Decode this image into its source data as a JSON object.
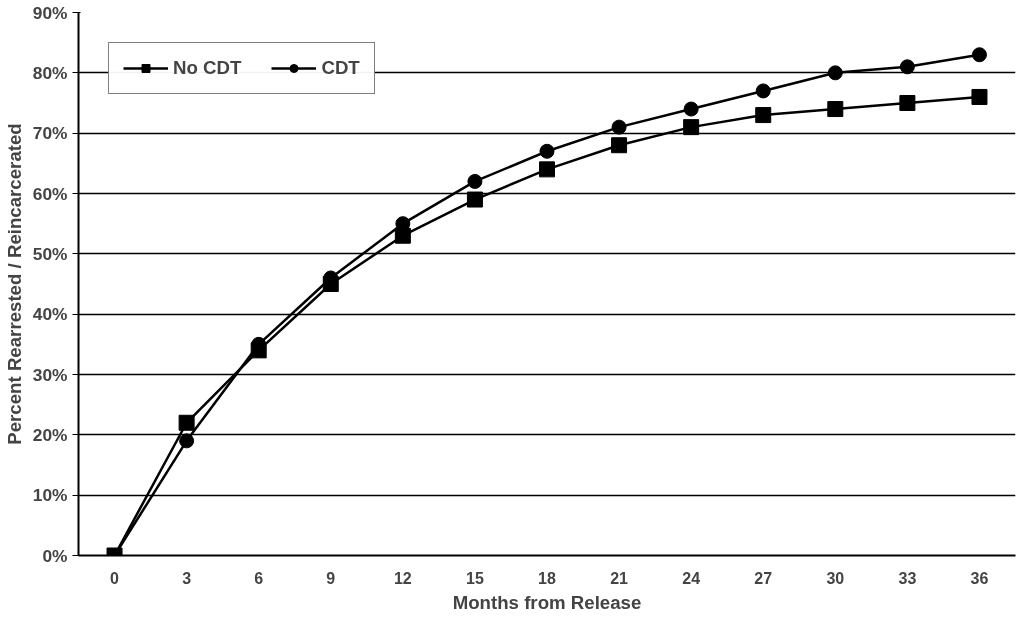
{
  "chart_data": {
    "type": "line",
    "xlabel": "Months from Release",
    "ylabel": "Percent Rearrested / Reincarcerated",
    "x": [
      0,
      3,
      6,
      9,
      12,
      15,
      18,
      21,
      24,
      27,
      30,
      33,
      36
    ],
    "series": [
      {
        "name": "No CDT",
        "color": "#000000",
        "marker": "square",
        "values": [
          0,
          22,
          34,
          45,
          53,
          59,
          64,
          68,
          71,
          73,
          74,
          75,
          76
        ]
      },
      {
        "name": "CDT",
        "color": "#000000",
        "marker": "circle",
        "values": [
          0,
          19,
          35,
          46,
          55,
          62,
          67,
          71,
          74,
          77,
          80,
          81,
          83
        ]
      }
    ],
    "xlim": [
      -1.5,
      37.5
    ],
    "xticks": [
      0,
      3,
      6,
      9,
      12,
      15,
      18,
      21,
      24,
      27,
      30,
      33,
      36
    ],
    "ylim": [
      0,
      90
    ],
    "yticks": [
      {
        "value": 0,
        "label": "0%"
      },
      {
        "value": 10,
        "label": "10%"
      },
      {
        "value": 20,
        "label": "20%"
      },
      {
        "value": 30,
        "label": "30%"
      },
      {
        "value": 40,
        "label": "40%"
      },
      {
        "value": 50,
        "label": "50%"
      },
      {
        "value": 60,
        "label": "60%"
      },
      {
        "value": 70,
        "label": "70%"
      },
      {
        "value": 80,
        "label": "80%"
      },
      {
        "value": 90,
        "label": "90%"
      }
    ],
    "grid": "y",
    "legend": "top left",
    "line_style": "solid"
  }
}
